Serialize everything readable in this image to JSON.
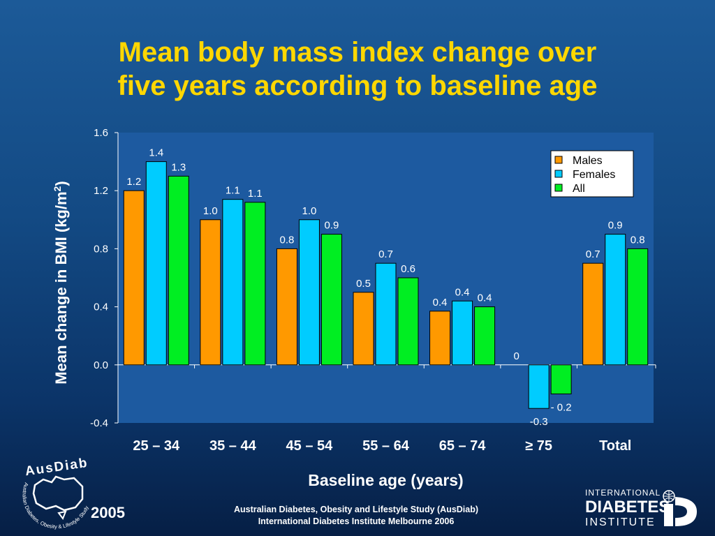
{
  "title_lines": [
    "Mean body mass index change over",
    "five years according to baseline age"
  ],
  "chart_data": {
    "type": "bar",
    "title": "Mean body mass index change over five years according to baseline age",
    "xlabel": "Baseline age (years)",
    "ylabel": "Mean change in BMI (kg/m2)",
    "ylabel_main": "Mean change in BMI (kg/m",
    "ylabel_sup": "2",
    "ylabel_end": ")",
    "categories": [
      "25 – 34",
      "35 – 44",
      "45 – 54",
      "55 – 64",
      "65 – 74",
      "≥ 75",
      "Total"
    ],
    "series": [
      {
        "name": "Males",
        "color": "#ff9900",
        "values": [
          1.2,
          1.0,
          0.8,
          0.5,
          0.37,
          0,
          0.7
        ],
        "labels": [
          "1.2",
          "1.0",
          "0.8",
          "0.5",
          "0.4",
          "0",
          "0.7"
        ]
      },
      {
        "name": "Females",
        "color": "#00ccff",
        "values": [
          1.4,
          1.14,
          1.0,
          0.7,
          0.44,
          -0.3,
          0.9
        ],
        "labels": [
          "1.4",
          "1.1",
          "1.0",
          "0.7",
          "0.4",
          "-0.3",
          "0.9"
        ]
      },
      {
        "name": "All",
        "color": "#00ee22",
        "values": [
          1.3,
          1.12,
          0.9,
          0.6,
          0.4,
          -0.2,
          0.8
        ],
        "labels": [
          "1.3",
          "1.1",
          "0.9",
          "0.6",
          "0.4",
          "- 0.2",
          "0.8"
        ]
      }
    ],
    "ylim": [
      -0.4,
      1.6
    ],
    "yticks": [
      "1.6",
      "1.2",
      "0.8",
      "0.4",
      "0.0",
      "-0.4"
    ],
    "grid": false,
    "legend_position": "top-right",
    "plot_background": "#1d5aa0"
  },
  "logo_left": {
    "text": "AusDiab",
    "subtext": "Australian Diabetes, Obesity & Lifestyle Study"
  },
  "logo_right": {
    "line1": "INTERNATIONAL",
    "line2": "DIABETES",
    "line3": "INSTITUTE"
  },
  "year": "2005",
  "footer_lines": [
    "Australian Diabetes, Obesity and Lifestyle Study (AusDiab)",
    "International Diabetes Institute Melbourne 2006"
  ]
}
